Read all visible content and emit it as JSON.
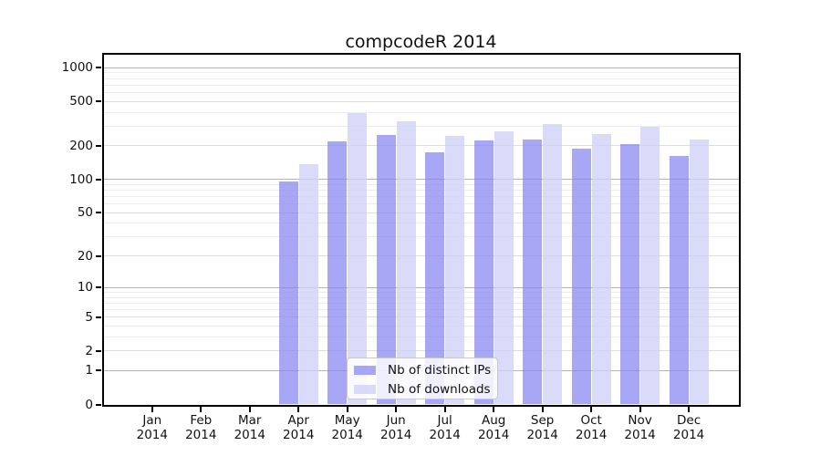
{
  "window": {
    "title": "compcodeR 2014"
  },
  "chart_data": {
    "type": "bar",
    "title": "compcodeR 2014",
    "year_label": "2014",
    "categories": [
      "Jan",
      "Feb",
      "Mar",
      "Apr",
      "May",
      "Jun",
      "Jul",
      "Aug",
      "Sep",
      "Oct",
      "Nov",
      "Dec"
    ],
    "series": [
      {
        "name": "Nb of distinct IPs",
        "color": "rgba(133,133,242,0.72)",
        "values": [
          0,
          0,
          0,
          96,
          220,
          250,
          175,
          222,
          228,
          190,
          207,
          162
        ]
      },
      {
        "name": "Nb of downloads",
        "color": "rgba(208,208,247,0.78)",
        "values": [
          0,
          0,
          0,
          137,
          393,
          334,
          248,
          270,
          314,
          253,
          296,
          228
        ]
      }
    ],
    "xlabel": "",
    "ylabel": "",
    "y_ticks": [
      0,
      1,
      2,
      5,
      10,
      20,
      50,
      100,
      200,
      500,
      1000
    ],
    "y_scale": "log10(value+1)",
    "ylim": [
      0,
      1320
    ],
    "grid": "horizontal, major and minor, light gray; decade lines darker",
    "legend_position": "inside bottom-center",
    "colors": {
      "axis": "#000000",
      "grid_decade": "#b4b4b4",
      "grid_major": "#dedede",
      "grid_minor": "#ececec"
    }
  }
}
